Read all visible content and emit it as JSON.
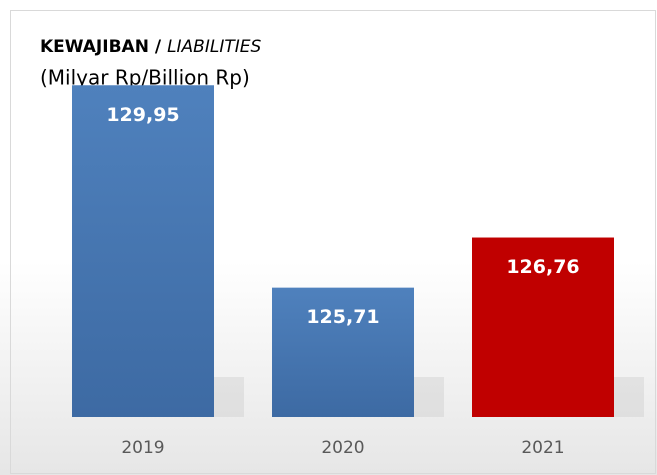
{
  "chart_data": {
    "type": "bar",
    "title": [
      "KEWAJIBAN /",
      "LIABILITIES"
    ],
    "subtitle": "(Milyar Rp/Billion Rp)",
    "categories": [
      "2019",
      "2020",
      "2021"
    ],
    "values": [
      129.95,
      125.71,
      126.76
    ],
    "value_labels": [
      "129,95",
      "125,71",
      "126,76"
    ],
    "colors": [
      "#4f81bd",
      "#4f81bd",
      "#c00000"
    ],
    "ylim": [
      123,
      130.5
    ]
  }
}
